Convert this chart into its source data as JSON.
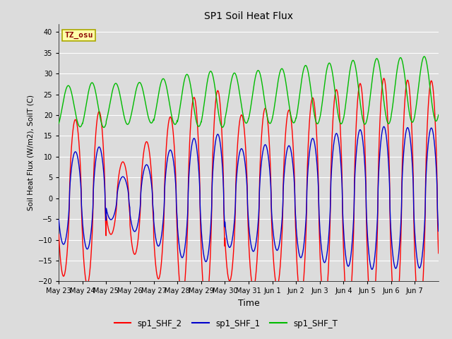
{
  "title": "SP1 Soil Heat Flux",
  "xlabel": "Time",
  "ylabel": "Soil Heat Flux (W/m2), SoilT (C)",
  "ylim": [
    -20,
    42
  ],
  "yticks": [
    -20,
    -15,
    -10,
    -5,
    0,
    5,
    10,
    15,
    20,
    25,
    30,
    35,
    40
  ],
  "bg_color": "#dcdcdc",
  "plot_bg_color": "#dcdcdc",
  "grid_color": "#ffffff",
  "tz_label": "TZ_osu",
  "tz_box_color": "#ffffaa",
  "tz_text_color": "#8b0000",
  "colors": {
    "sp1_SHF_2": "#ff0000",
    "sp1_SHF_1": "#0000cc",
    "sp1_SHF_T": "#00bb00"
  },
  "legend_labels": [
    "sp1_SHF_2",
    "sp1_SHF_1",
    "sp1_SHF_T"
  ],
  "x_tick_labels": [
    "May 23",
    "May 24",
    "May 25",
    "May 26",
    "May 27",
    "May 28",
    "May 29",
    "May 30",
    "May 31",
    "Jun 1",
    "Jun 2",
    "Jun 3",
    "Jun 4",
    "Jun 5",
    "Jun 6",
    "Jun 7"
  ],
  "num_days": 16,
  "samples_per_day": 144
}
